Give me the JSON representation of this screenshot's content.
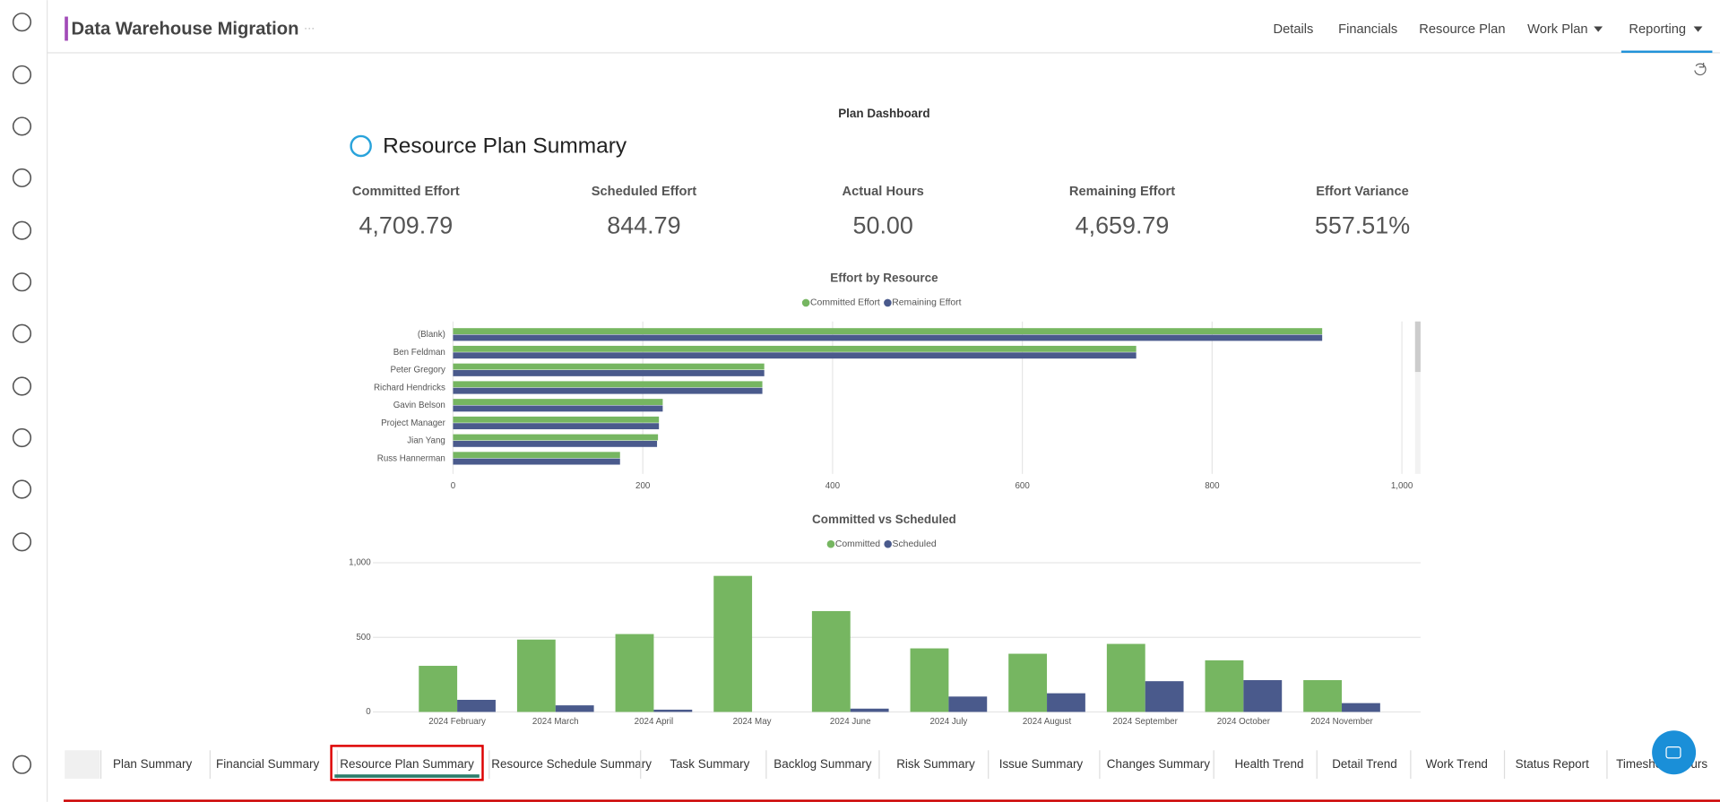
{
  "header": {
    "title": "Data Warehouse Migration"
  },
  "nav": [
    "Details",
    "Financials",
    "Resource Plan",
    "Work Plan",
    "Reporting"
  ],
  "active_nav": 4,
  "dashboard": {
    "title": "Plan Dashboard",
    "heading": "Resource Plan Summary",
    "kpis": [
      {
        "label": "Committed Effort",
        "value": "4,709.79"
      },
      {
        "label": "Scheduled Effort",
        "value": "844.79"
      },
      {
        "label": "Actual Hours",
        "value": "50.00"
      },
      {
        "label": "Remaining Effort",
        "value": "4,659.79"
      },
      {
        "label": "Effort Variance",
        "value": "557.51%"
      }
    ]
  },
  "chart_data": [
    {
      "type": "hbar",
      "title": "Effort by Resource",
      "categories": [
        "(Blank)",
        "Ben Feldman",
        "Peter Gregory",
        "Richard Hendricks",
        "Gavin Belson",
        "Project Manager",
        "Jian Yang",
        "Russ Hannerman"
      ],
      "series": [
        {
          "name": "Committed Effort",
          "color": "#76b661",
          "values": [
            916,
            720,
            328,
            326,
            221,
            217,
            216,
            176
          ]
        },
        {
          "name": "Remaining Effort",
          "color": "#4a5a8c",
          "values": [
            916,
            720,
            328,
            326,
            221,
            217,
            215,
            176
          ]
        }
      ],
      "xlim": [
        0,
        1000
      ],
      "xticks": [
        0,
        200,
        400,
        600,
        800,
        {
          "value": 1000,
          "label": "1,000"
        }
      ],
      "grid": true
    },
    {
      "type": "bar",
      "title": "Committed vs Scheduled",
      "categories": [
        "2024 February",
        "2024 March",
        "2024 April",
        "2024 May",
        "2024 June",
        "2024 July",
        "2024 August",
        "2024 September",
        "2024 October",
        "2024 November"
      ],
      "series": [
        {
          "name": "Committed",
          "color": "#76b661",
          "values": [
            309,
            485,
            522,
            912,
            676,
            426,
            390,
            456,
            346,
            213
          ]
        },
        {
          "name": "Scheduled",
          "color": "#4a5a8c",
          "values": [
            81,
            44,
            15,
            0,
            22,
            103,
            125,
            206,
            213,
            59
          ]
        }
      ],
      "ylim": [
        0,
        1000
      ],
      "yticks": [
        0,
        500,
        {
          "value": 1000,
          "label": "1,000"
        }
      ],
      "grid": true
    }
  ],
  "tabs": [
    "Plan Summary",
    "Financial Summary",
    "Resource Plan Summary",
    "Resource Schedule Summary",
    "Task Summary",
    "Backlog Summary",
    "Risk Summary",
    "Issue Summary",
    "Changes Summary",
    "Health Trend",
    "Detail Trend",
    "Work Trend",
    "Status Report",
    "Timesheet Hours"
  ],
  "active_tab": 2
}
